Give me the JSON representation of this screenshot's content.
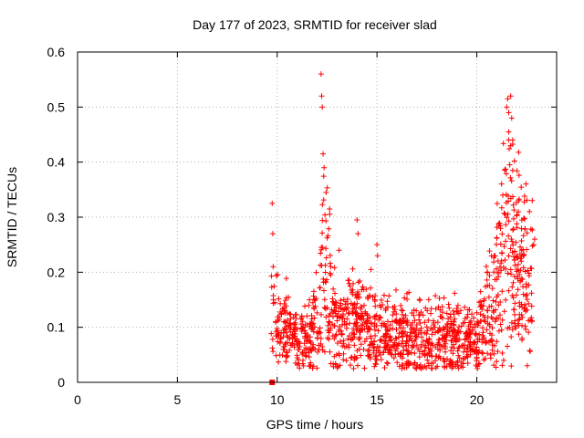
{
  "chart_data": {
    "type": "scatter",
    "title": "Day 177 of 2023, SRMTID for receiver slad",
    "xlabel": "GPS time / hours",
    "ylabel": "SRMTID / TECUs",
    "xlim": [
      0,
      24
    ],
    "ylim": [
      0,
      0.6
    ],
    "xticks": [
      0,
      5,
      10,
      15,
      20
    ],
    "yticks": [
      0,
      0.1,
      0.2,
      0.3,
      0.4,
      0.5,
      0.6
    ],
    "xtick_labels": [
      "0",
      "5",
      "10",
      "15",
      "20"
    ],
    "ytick_labels": [
      "0",
      "0.1",
      "0.2",
      "0.3",
      "0.4",
      "0.5",
      "0.6"
    ],
    "grid": true,
    "marker": "plus",
    "series_color": "#ff0000",
    "extra_markers": [
      {
        "x": 9.75,
        "y": 0,
        "shape": "square"
      }
    ],
    "profile": [
      [
        9.7,
        0.13
      ],
      [
        10.0,
        0.1
      ],
      [
        10.5,
        0.09
      ],
      [
        11.0,
        0.075
      ],
      [
        11.5,
        0.08
      ],
      [
        12.0,
        0.1
      ],
      [
        12.3,
        0.22
      ],
      [
        12.5,
        0.2
      ],
      [
        12.8,
        0.12
      ],
      [
        13.0,
        0.1
      ],
      [
        13.5,
        0.1
      ],
      [
        14.0,
        0.12
      ],
      [
        14.5,
        0.1
      ],
      [
        15.0,
        0.09
      ],
      [
        15.5,
        0.09
      ],
      [
        16.0,
        0.085
      ],
      [
        16.5,
        0.08
      ],
      [
        17.0,
        0.08
      ],
      [
        17.5,
        0.08
      ],
      [
        18.0,
        0.08
      ],
      [
        18.5,
        0.08
      ],
      [
        19.0,
        0.08
      ],
      [
        19.5,
        0.075
      ],
      [
        20.0,
        0.08
      ],
      [
        20.5,
        0.12
      ],
      [
        21.0,
        0.16
      ],
      [
        21.3,
        0.22
      ],
      [
        21.6,
        0.3
      ],
      [
        21.9,
        0.25
      ],
      [
        22.2,
        0.2
      ],
      [
        22.5,
        0.18
      ],
      [
        22.8,
        0.19
      ]
    ],
    "spikes": [
      {
        "x": 9.75,
        "y": 0.325
      },
      {
        "x": 9.78,
        "y": 0.27
      },
      {
        "x": 9.8,
        "y": 0.21
      },
      {
        "x": 12.2,
        "y": 0.56
      },
      {
        "x": 12.23,
        "y": 0.52
      },
      {
        "x": 12.26,
        "y": 0.5
      },
      {
        "x": 12.3,
        "y": 0.415
      },
      {
        "x": 12.35,
        "y": 0.39
      },
      {
        "x": 12.45,
        "y": 0.345
      },
      {
        "x": 14.0,
        "y": 0.295
      },
      {
        "x": 14.05,
        "y": 0.27
      },
      {
        "x": 13.1,
        "y": 0.24
      },
      {
        "x": 15.0,
        "y": 0.25
      },
      {
        "x": 15.03,
        "y": 0.23
      },
      {
        "x": 14.7,
        "y": 0.205
      },
      {
        "x": 21.5,
        "y": 0.5
      },
      {
        "x": 21.55,
        "y": 0.515
      },
      {
        "x": 21.7,
        "y": 0.52
      },
      {
        "x": 21.6,
        "y": 0.49
      },
      {
        "x": 21.75,
        "y": 0.48
      },
      {
        "x": 21.6,
        "y": 0.455
      },
      {
        "x": 21.8,
        "y": 0.44
      },
      {
        "x": 21.7,
        "y": 0.43
      },
      {
        "x": 21.65,
        "y": 0.395
      },
      {
        "x": 21.8,
        "y": 0.385
      },
      {
        "x": 22.1,
        "y": 0.33
      },
      {
        "x": 21.3,
        "y": 0.34
      },
      {
        "x": 22.9,
        "y": 0.26
      },
      {
        "x": 22.85,
        "y": 0.25
      }
    ]
  }
}
